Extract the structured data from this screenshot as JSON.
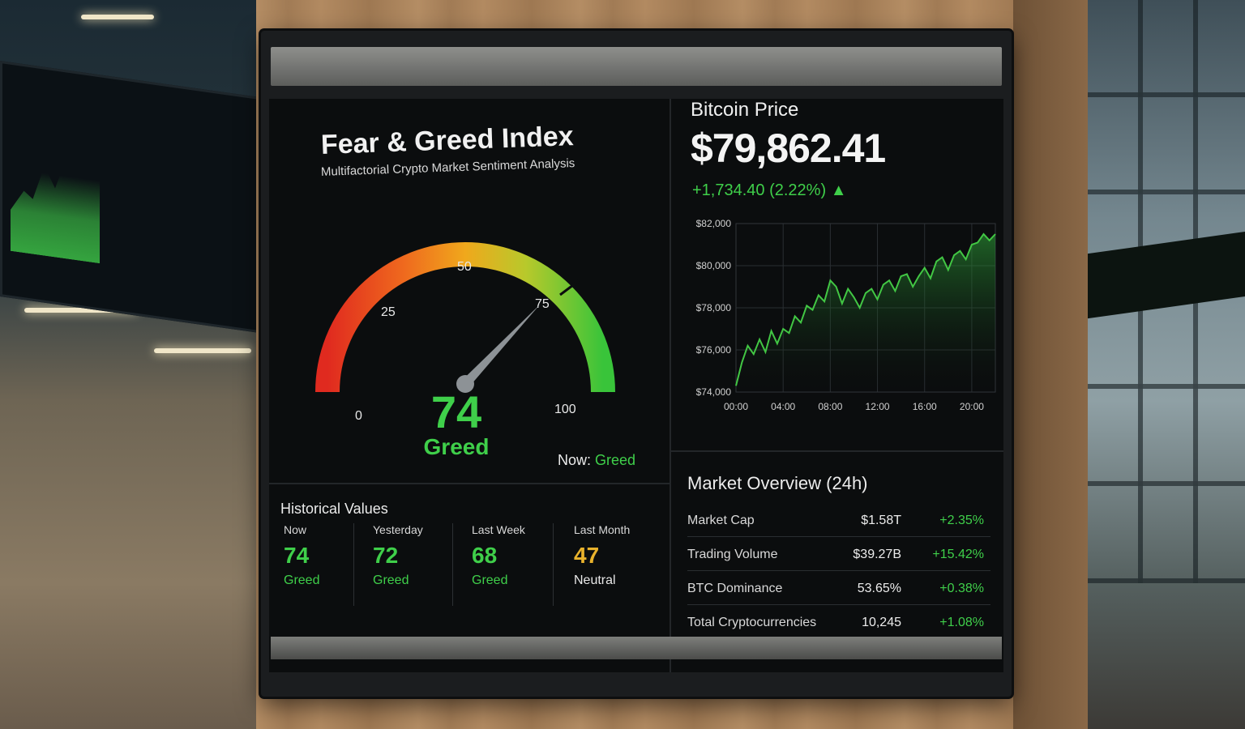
{
  "gauge": {
    "title": "Fear & Greed Index",
    "subtitle": "Multifactorial Crypto Market Sentiment Analysis",
    "value": "74",
    "value_num": 74,
    "classification": "Greed",
    "ticks": [
      "0",
      "25",
      "50",
      "75",
      "100"
    ],
    "now_prefix": "Now:",
    "now_value": "Greed",
    "colors": {
      "fear": "#e02a1f",
      "neutral": "#f0a81c",
      "greed": "#39c43a"
    }
  },
  "historical": {
    "title": "Historical Values",
    "items": [
      {
        "label": "Now",
        "value": "74",
        "class": "Greed",
        "color": "#3fcf4a"
      },
      {
        "label": "Yesterday",
        "value": "72",
        "class": "Greed",
        "color": "#3fcf4a"
      },
      {
        "label": "Last Week",
        "value": "68",
        "class": "Greed",
        "color": "#3fcf4a"
      },
      {
        "label": "Last Month",
        "value": "47",
        "class": "Neutral",
        "color": "#e8b22c"
      }
    ]
  },
  "btc": {
    "title": "Bitcoin Price",
    "price": "$79,862.41",
    "change": "+1,734.40",
    "change_pct": "(2.22%)",
    "arrow": "▲"
  },
  "chart_data": {
    "type": "area",
    "x_ticks": [
      "00:00",
      "04:00",
      "08:00",
      "12:00",
      "16:00",
      "20:00"
    ],
    "y_ticks": [
      "$74,000",
      "$76,000",
      "$78,000",
      "$80,000",
      "$82,000"
    ],
    "ylim": [
      74000,
      82000
    ],
    "xlim": [
      0,
      22
    ],
    "grid": true,
    "x": [
      0,
      0.5,
      1,
      1.5,
      2,
      2.5,
      3,
      3.5,
      4,
      4.5,
      5,
      5.5,
      6,
      6.5,
      7,
      7.5,
      8,
      8.5,
      9,
      9.5,
      10,
      10.5,
      11,
      11.5,
      12,
      12.5,
      13,
      13.5,
      14,
      14.5,
      15,
      15.5,
      16,
      16.5,
      17,
      17.5,
      18,
      18.5,
      19,
      19.5,
      20,
      20.5,
      21,
      21.5,
      22
    ],
    "values": [
      74300,
      75400,
      76200,
      75800,
      76500,
      75900,
      76900,
      76300,
      77000,
      76800,
      77600,
      77300,
      78100,
      77900,
      78600,
      78300,
      79300,
      79000,
      78200,
      78900,
      78500,
      78000,
      78700,
      78900,
      78400,
      79100,
      79300,
      78800,
      79500,
      79600,
      79000,
      79500,
      79900,
      79400,
      80200,
      80400,
      79800,
      80500,
      80700,
      80300,
      81000,
      81100,
      81500,
      81200,
      81500
    ],
    "color": "#42c744"
  },
  "market": {
    "title": "Market Overview (24h)",
    "rows": [
      {
        "name": "Market Cap",
        "value": "$1.58T",
        "change": "+2.35%"
      },
      {
        "name": "Trading Volume",
        "value": "$39.27B",
        "change": "+15.42%"
      },
      {
        "name": "BTC Dominance",
        "value": "53.65%",
        "change": "+0.38%"
      },
      {
        "name": "Total Cryptocurrencies",
        "value": "10,245",
        "change": "+1.08%"
      }
    ]
  }
}
